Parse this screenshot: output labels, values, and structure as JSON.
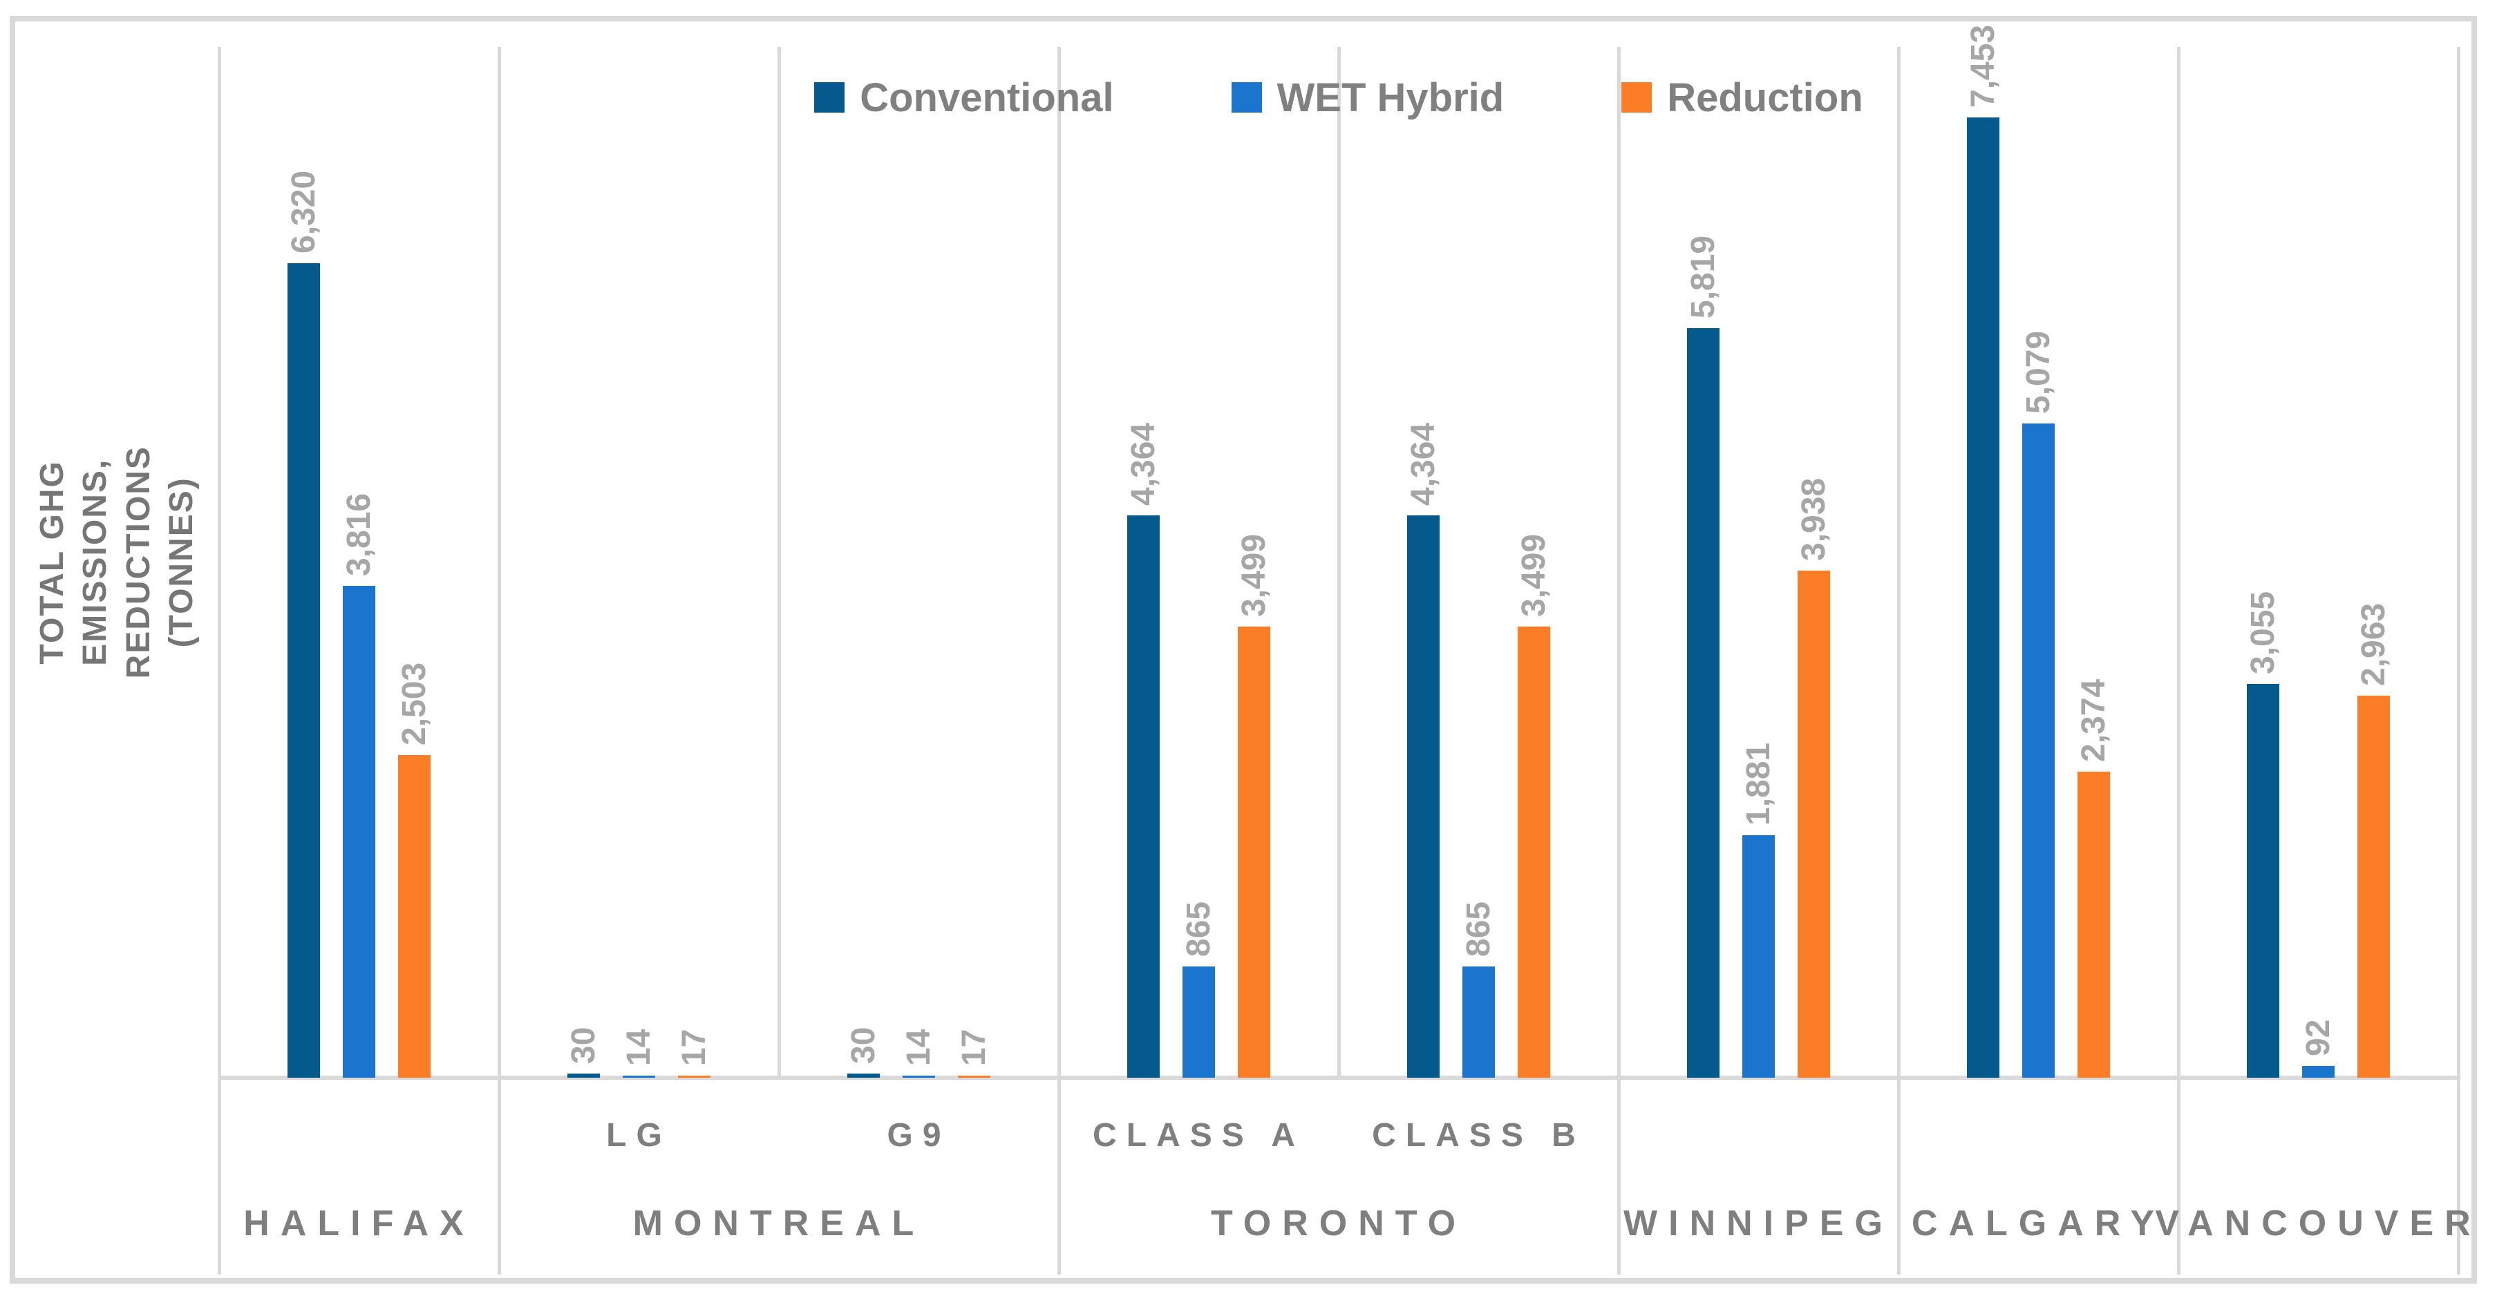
{
  "chart_data": {
    "type": "bar",
    "title": "",
    "ylabel": "TOTAL GHG EMISSIONS, REDUCTIONS\n(TONNES)",
    "xlabel": "",
    "ylim": [
      0,
      8000
    ],
    "y_axis_ticks_visible": false,
    "gridlines": "category-separators-only",
    "legend_position": "top-center",
    "value_label_rotation": 270,
    "value_label_format": "thousands-comma",
    "groups": [
      {
        "label": "HALIFAX",
        "subcategories": [
          ""
        ]
      },
      {
        "label": "MONTREAL",
        "subcategories": [
          "LG",
          "G9"
        ]
      },
      {
        "label": "TORONTO",
        "subcategories": [
          "CLASS A",
          "CLASS B"
        ]
      },
      {
        "label": "WINNIPEG",
        "subcategories": [
          ""
        ]
      },
      {
        "label": "CALGARY",
        "subcategories": [
          ""
        ]
      },
      {
        "label": "VANCOUVER",
        "subcategories": [
          ""
        ]
      }
    ],
    "slot_order": [
      "HALIFAX",
      "MONTREAL LG",
      "MONTREAL G9",
      "TORONTO CLASS A",
      "TORONTO CLASS B",
      "WINNIPEG",
      "CALGARY",
      "VANCOUVER"
    ],
    "series": [
      {
        "name": "Conventional",
        "color": "#045A8C",
        "values": [
          6320,
          30,
          30,
          4364,
          4364,
          5819,
          7453,
          3055
        ]
      },
      {
        "name": "WET Hybrid",
        "color": "#1B75CE",
        "values": [
          3816,
          14,
          14,
          865,
          865,
          1881,
          5079,
          92
        ]
      },
      {
        "name": "Reduction",
        "color": "#FB7D25",
        "values": [
          2503,
          17,
          17,
          3499,
          3499,
          3938,
          2374,
          2963
        ]
      }
    ],
    "value_labels": {
      "HALIFAX": [
        "6,320",
        "3,816",
        "2,503"
      ],
      "MONTREAL LG": [
        "30",
        "14",
        "17"
      ],
      "MONTREAL G9": [
        "30",
        "14",
        "17"
      ],
      "TORONTO CLASS A": [
        "4,364",
        "865",
        "3,499"
      ],
      "TORONTO CLASS B": [
        "4,364",
        "865",
        "3,499"
      ],
      "WINNIPEG": [
        "5,819",
        "1,881",
        "3,938"
      ],
      "CALGARY": [
        "7,453",
        "5,079",
        "2,374"
      ],
      "VANCOUVER": [
        "3,055",
        "92",
        "2,963"
      ]
    },
    "colors": {
      "frame_and_gridlines": "#D9D9D9",
      "value_label_text": "#A6A6A6",
      "axis_label_text": "#7F7F7F",
      "y_title_text": "#767676",
      "background": "#FFFFFF"
    }
  }
}
